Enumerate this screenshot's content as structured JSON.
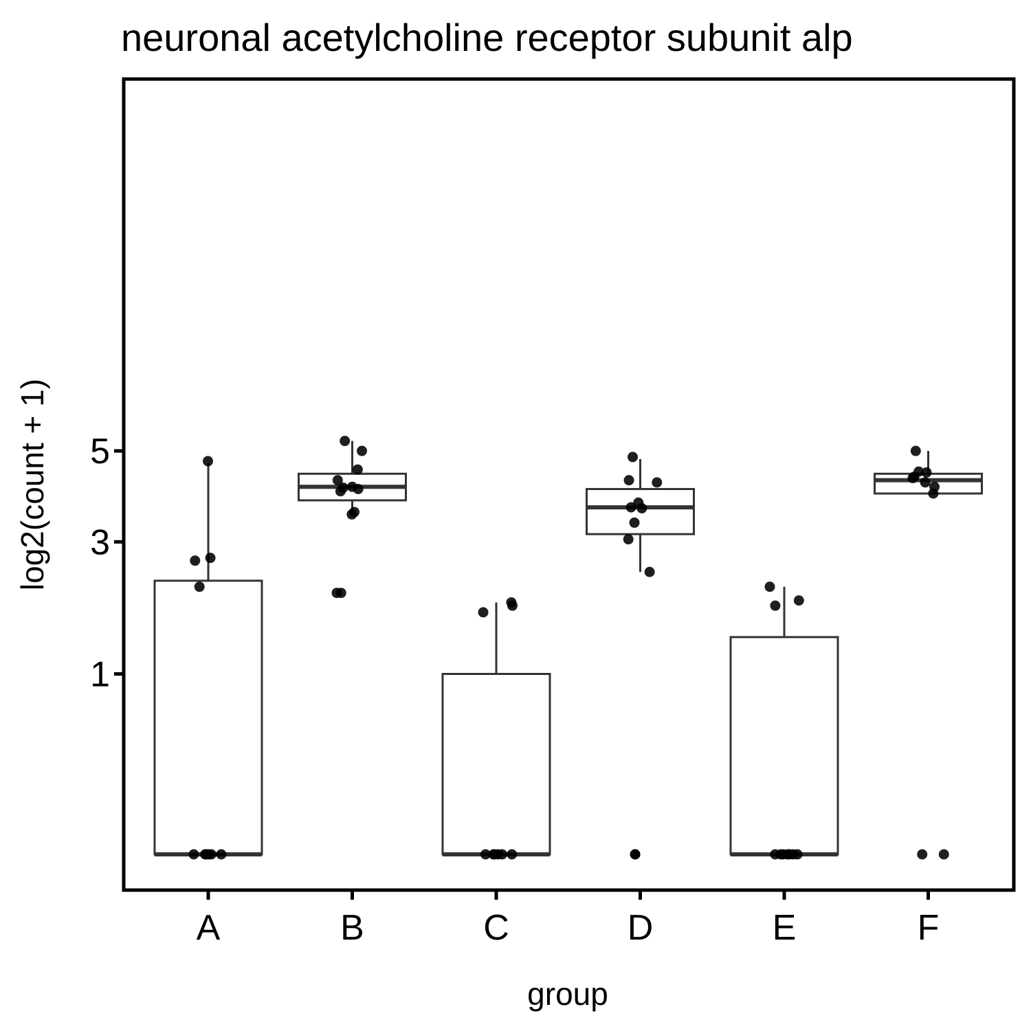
{
  "chart_data": {
    "type": "box",
    "title": "neuronal acetylcholine receptor subunit alp",
    "xlabel": "group",
    "ylabel": "log2(count + 1)",
    "y_scale": "sqrt",
    "y_ticks": [
      1,
      3,
      5
    ],
    "ylim": [
      0,
      5.5
    ],
    "categories": [
      "A",
      "B",
      "C",
      "D",
      "E",
      "F"
    ],
    "grid": false,
    "boxes": [
      {
        "group": "A",
        "lower_whisker": 0,
        "q1": 0,
        "median": 0,
        "q3": 2.3,
        "upper_whisker": 4.7
      },
      {
        "group": "B",
        "lower_whisker": 3.55,
        "q1": 3.85,
        "median": 4.15,
        "q3": 4.45,
        "upper_whisker": 5.25
      },
      {
        "group": "C",
        "lower_whisker": 0,
        "q1": 0,
        "median": 0,
        "q3": 1.0,
        "upper_whisker": 1.95
      },
      {
        "group": "D",
        "lower_whisker": 2.45,
        "q1": 3.15,
        "median": 3.7,
        "q3": 4.1,
        "upper_whisker": 4.8
      },
      {
        "group": "E",
        "lower_whisker": 0,
        "q1": 0,
        "median": 0,
        "q3": 1.45,
        "upper_whisker": 2.2
      },
      {
        "group": "F",
        "lower_whisker": 4.0,
        "q1": 4.0,
        "median": 4.3,
        "q3": 4.45,
        "upper_whisker": 5.0
      }
    ],
    "points": [
      {
        "group": "A",
        "values": [
          4.75,
          2.7,
          2.65,
          2.2,
          0,
          0,
          0,
          0,
          0,
          0
        ]
      },
      {
        "group": "B",
        "values": [
          5.25,
          5.0,
          4.55,
          4.3,
          4.15,
          4.13,
          4.1,
          4.05,
          3.6,
          3.55,
          2.1,
          2.1
        ]
      },
      {
        "group": "C",
        "values": [
          1.95,
          1.9,
          1.8,
          0,
          0,
          0,
          0,
          0,
          0
        ]
      },
      {
        "group": "D",
        "values": [
          4.85,
          4.3,
          4.25,
          3.8,
          3.7,
          3.68,
          3.38,
          3.05,
          2.45,
          0,
          0
        ]
      },
      {
        "group": "E",
        "values": [
          2.2,
          1.98,
          1.9,
          0,
          0,
          0,
          0,
          0,
          0,
          0
        ]
      },
      {
        "group": "F",
        "values": [
          5.0,
          4.5,
          4.48,
          4.38,
          4.35,
          4.25,
          4.15,
          4.0,
          0,
          0
        ]
      }
    ]
  }
}
